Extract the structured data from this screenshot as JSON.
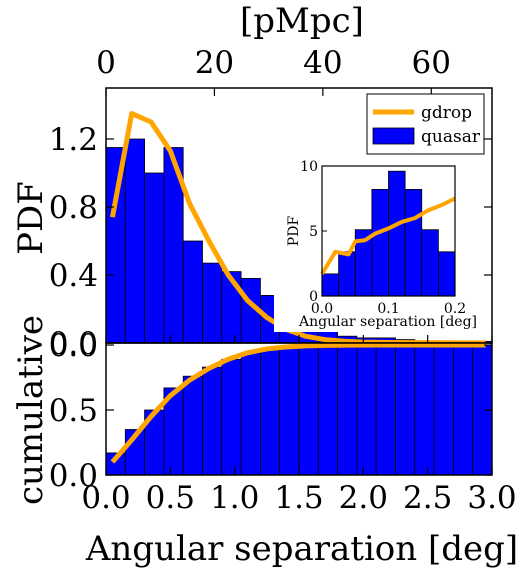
{
  "colors": {
    "quasar_fill": "#0000ff",
    "gdrop_line": "#ffa500",
    "axes": "#000000",
    "background": "#ffffff"
  },
  "chart_data": [
    {
      "id": "pdf",
      "type": "bar",
      "ylabel": "PDF",
      "xlabel": "",
      "top_axis_label": "[pMpc]",
      "top_axis_ticks": [
        "0",
        "20",
        "40",
        "60"
      ],
      "xlim": [
        0,
        3.0
      ],
      "ylim": [
        0,
        1.5
      ],
      "yticks": [
        "0.0",
        "0.4",
        "0.8",
        "1.2"
      ],
      "bin_edges": [
        0,
        0.15,
        0.3,
        0.45,
        0.6,
        0.75,
        0.9,
        1.05,
        1.2,
        1.35,
        1.5,
        1.65,
        1.8,
        1.95,
        2.1,
        2.25,
        2.4,
        2.55,
        2.7,
        2.85,
        3.0
      ],
      "series": [
        {
          "name": "quasar",
          "kind": "histogram",
          "values": [
            1.15,
            1.2,
            1.0,
            1.15,
            0.6,
            0.47,
            0.42,
            0.38,
            0.28,
            0.2,
            0.12,
            0.07,
            0.04,
            0.03,
            0.03,
            0.02,
            0.01,
            0.01,
            0.01,
            0.01
          ]
        },
        {
          "name": "gdrop",
          "kind": "line",
          "x": [
            0.05,
            0.2,
            0.35,
            0.5,
            0.65,
            0.8,
            0.95,
            1.1,
            1.25,
            1.4,
            1.55,
            1.7,
            1.85,
            2.0,
            2.2,
            2.5,
            2.8,
            2.95
          ],
          "y": [
            0.74,
            1.35,
            1.3,
            1.13,
            0.82,
            0.6,
            0.4,
            0.25,
            0.15,
            0.08,
            0.04,
            0.02,
            0.01,
            0.005,
            0.003,
            0.002,
            0.001,
            0.001
          ]
        }
      ],
      "legend": {
        "placement": "top-right",
        "entries": [
          "gdrop",
          "quasar"
        ]
      }
    },
    {
      "id": "inset",
      "type": "bar",
      "ylabel": "PDF",
      "xlabel": "Angular separation [deg]",
      "xlim": [
        0,
        0.2
      ],
      "ylim": [
        0,
        10
      ],
      "xticks": [
        "0.0",
        "0.1",
        "0.2"
      ],
      "yticks": [
        "0",
        "5",
        "10"
      ],
      "bin_edges": [
        0,
        0.025,
        0.05,
        0.075,
        0.1,
        0.125,
        0.15,
        0.175,
        0.2
      ],
      "series": [
        {
          "name": "quasar",
          "kind": "histogram",
          "values": [
            1.7,
            3.4,
            5.1,
            8.2,
            9.6,
            8.2,
            5.1,
            3.4
          ]
        },
        {
          "name": "gdrop",
          "kind": "line",
          "x": [
            0.0,
            0.02,
            0.03,
            0.04,
            0.05,
            0.065,
            0.08,
            0.1,
            0.12,
            0.14,
            0.16,
            0.18,
            0.2
          ],
          "y": [
            1.7,
            3.4,
            3.3,
            3.2,
            4.2,
            4.3,
            4.8,
            5.2,
            5.7,
            6.0,
            6.6,
            7.0,
            7.5
          ]
        }
      ]
    },
    {
      "id": "cumulative",
      "type": "bar",
      "ylabel": "cumulative",
      "xlabel": "Angular separation [deg]",
      "xlim": [
        0,
        3.0
      ],
      "ylim": [
        0,
        1.0
      ],
      "xticks": [
        "0.0",
        "0.5",
        "1.0",
        "1.5",
        "2.0",
        "2.5",
        "3.0"
      ],
      "yticks": [
        "0.0",
        "0.5",
        "0.0"
      ],
      "bin_edges": [
        0,
        0.15,
        0.3,
        0.45,
        0.6,
        0.75,
        0.9,
        1.05,
        1.2,
        1.35,
        1.5,
        1.65,
        1.8,
        1.95,
        2.1,
        2.25,
        2.4,
        2.55,
        2.7,
        2.85,
        3.0
      ],
      "series": [
        {
          "name": "quasar",
          "kind": "histogram",
          "values": [
            0.17,
            0.35,
            0.5,
            0.67,
            0.76,
            0.83,
            0.89,
            0.94,
            0.97,
            0.98,
            0.99,
            1.0,
            1.0,
            1.0,
            1.0,
            1.0,
            1.0,
            1.0,
            1.0,
            1.0
          ]
        },
        {
          "name": "gdrop",
          "kind": "line",
          "x": [
            0.05,
            0.2,
            0.35,
            0.5,
            0.65,
            0.8,
            0.95,
            1.1,
            1.25,
            1.4,
            1.55,
            1.7,
            1.9,
            2.2,
            2.6,
            2.95
          ],
          "y": [
            0.1,
            0.27,
            0.45,
            0.61,
            0.73,
            0.82,
            0.89,
            0.94,
            0.97,
            0.985,
            0.993,
            0.997,
            0.999,
            1.0,
            1.0,
            1.0
          ]
        }
      ]
    }
  ]
}
